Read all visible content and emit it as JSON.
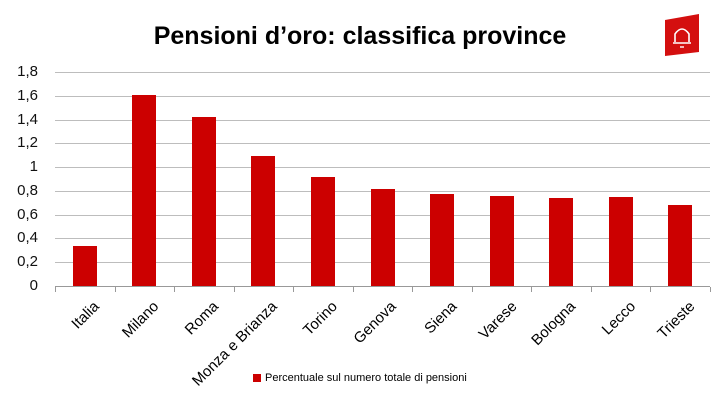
{
  "header": {
    "title": "Pensioni d’oro: classifica province",
    "logo_icon": "bell-icon",
    "logo_color": "#d40f0f"
  },
  "chart_data": {
    "type": "bar",
    "title": "Pensioni d’oro: classifica province",
    "xlabel": "",
    "ylabel": "",
    "ylim": [
      0,
      1.8
    ],
    "yticks": [
      "0",
      "0,2",
      "0,4",
      "0,6",
      "0,8",
      "1",
      "1,2",
      "1,4",
      "1,6",
      "1,8"
    ],
    "grid": true,
    "legend_position": "bottom",
    "categories": [
      "Italia",
      "Milano",
      "Roma",
      "Monza e Brianza",
      "Torino",
      "Genova",
      "Siena",
      "Varese",
      "Bologna",
      "Lecco",
      "Trieste"
    ],
    "series": [
      {
        "name": "Percentuale sul numero totale di pensioni",
        "color": "#cc0000",
        "values": [
          0.34,
          1.61,
          1.42,
          1.09,
          0.92,
          0.82,
          0.77,
          0.76,
          0.74,
          0.75,
          0.68
        ]
      }
    ]
  },
  "legend": {
    "label": "Percentuale sul numero totale di pensioni"
  }
}
